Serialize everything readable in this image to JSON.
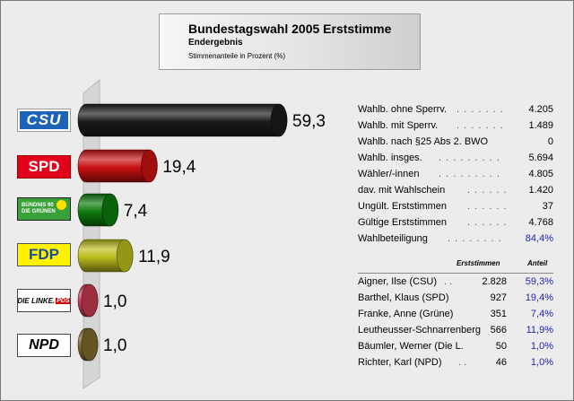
{
  "header": {
    "title": "Bundestagswahl 2005 Erststimme",
    "subtitle": "Endergebnis",
    "caption": "Stimmenanteile in Prozent (%)"
  },
  "logos": {
    "csu": "CSU",
    "spd": "SPD",
    "gruene_line1": "BÜNDNIS 90",
    "gruene_line2": "DIE GRÜNEN",
    "fdp": "FDP",
    "linke": "DIE LINKE.",
    "linke_pds": "PDS",
    "npd": "NPD"
  },
  "chart_data": {
    "type": "bar",
    "orientation": "horizontal",
    "categories": [
      "CSU",
      "SPD",
      "GRÜNE",
      "FDP",
      "DIE LINKE.PDS",
      "NPD"
    ],
    "values": [
      59.3,
      19.4,
      7.4,
      11.9,
      1.0,
      1.0
    ],
    "value_labels": [
      "59,3",
      "19,4",
      "7,4",
      "11,9",
      "1,0",
      "1,0"
    ],
    "colors": [
      "#1a1a1a",
      "#c81010",
      "#0d7a0d",
      "#bcbc1c",
      "#c43a50",
      "#7d6a2e"
    ],
    "xlim": [
      0,
      59.3
    ],
    "title": "Bundestagswahl 2005 Erststimme",
    "subtitle": "Endergebnis",
    "xlabel": "",
    "ylabel": "Stimmenanteile in Prozent (%)",
    "grid": false,
    "legend": "none"
  },
  "stats": [
    {
      "label": "Wahlb. ohne Sperrv.",
      "dots": ". . . . . . .",
      "value": "4.205"
    },
    {
      "label": "Wahlb. mit Sperrv.",
      "dots": ". . . . . . .",
      "value": "1.489"
    },
    {
      "label": "Wahlb. nach §25 Abs 2. BWO",
      "dots": "",
      "value": "0"
    },
    {
      "label": "Wahlb. insges.",
      "dots": ". . . . . . . . .",
      "value": "5.694"
    },
    {
      "label": "Wähler/-innen",
      "dots": ". . . . . . . . .",
      "value": "4.805"
    },
    {
      "label": "dav. mit Wahlschein",
      "dots": ". . . . . .",
      "value": "1.420"
    },
    {
      "label": "Ungült. Erststimmen",
      "dots": ". . . . . .",
      "value": "37"
    },
    {
      "label": "Gültige Erststimmen",
      "dots": ". . . . . .",
      "value": "4.768"
    },
    {
      "label": "Wahlbeteiligung",
      "dots": ". . . . . . . .",
      "value": "84,4%"
    }
  ],
  "candidates_header": {
    "votes": "Erststimmen",
    "share": "Anteil"
  },
  "candidates": [
    {
      "name": "Aigner, Ilse (CSU)",
      "dots": ". .",
      "votes": "2.828",
      "share": "59,3%"
    },
    {
      "name": "Barthel, Klaus (SPD)",
      "dots": "",
      "votes": "927",
      "share": "19,4%"
    },
    {
      "name": "Franke, Anne (Grüne)",
      "dots": "",
      "votes": "351",
      "share": "7,4%"
    },
    {
      "name": "Leutheusser-Schnarrenberg",
      "dots": "",
      "votes": "566",
      "share": "11,9%"
    },
    {
      "name": "Bäumler, Werner (Die L.",
      "dots": "",
      "votes": "50",
      "share": "1,0%"
    },
    {
      "name": "Richter, Karl (NPD)",
      "dots": ". .",
      "votes": "46",
      "share": "1,0%"
    }
  ]
}
